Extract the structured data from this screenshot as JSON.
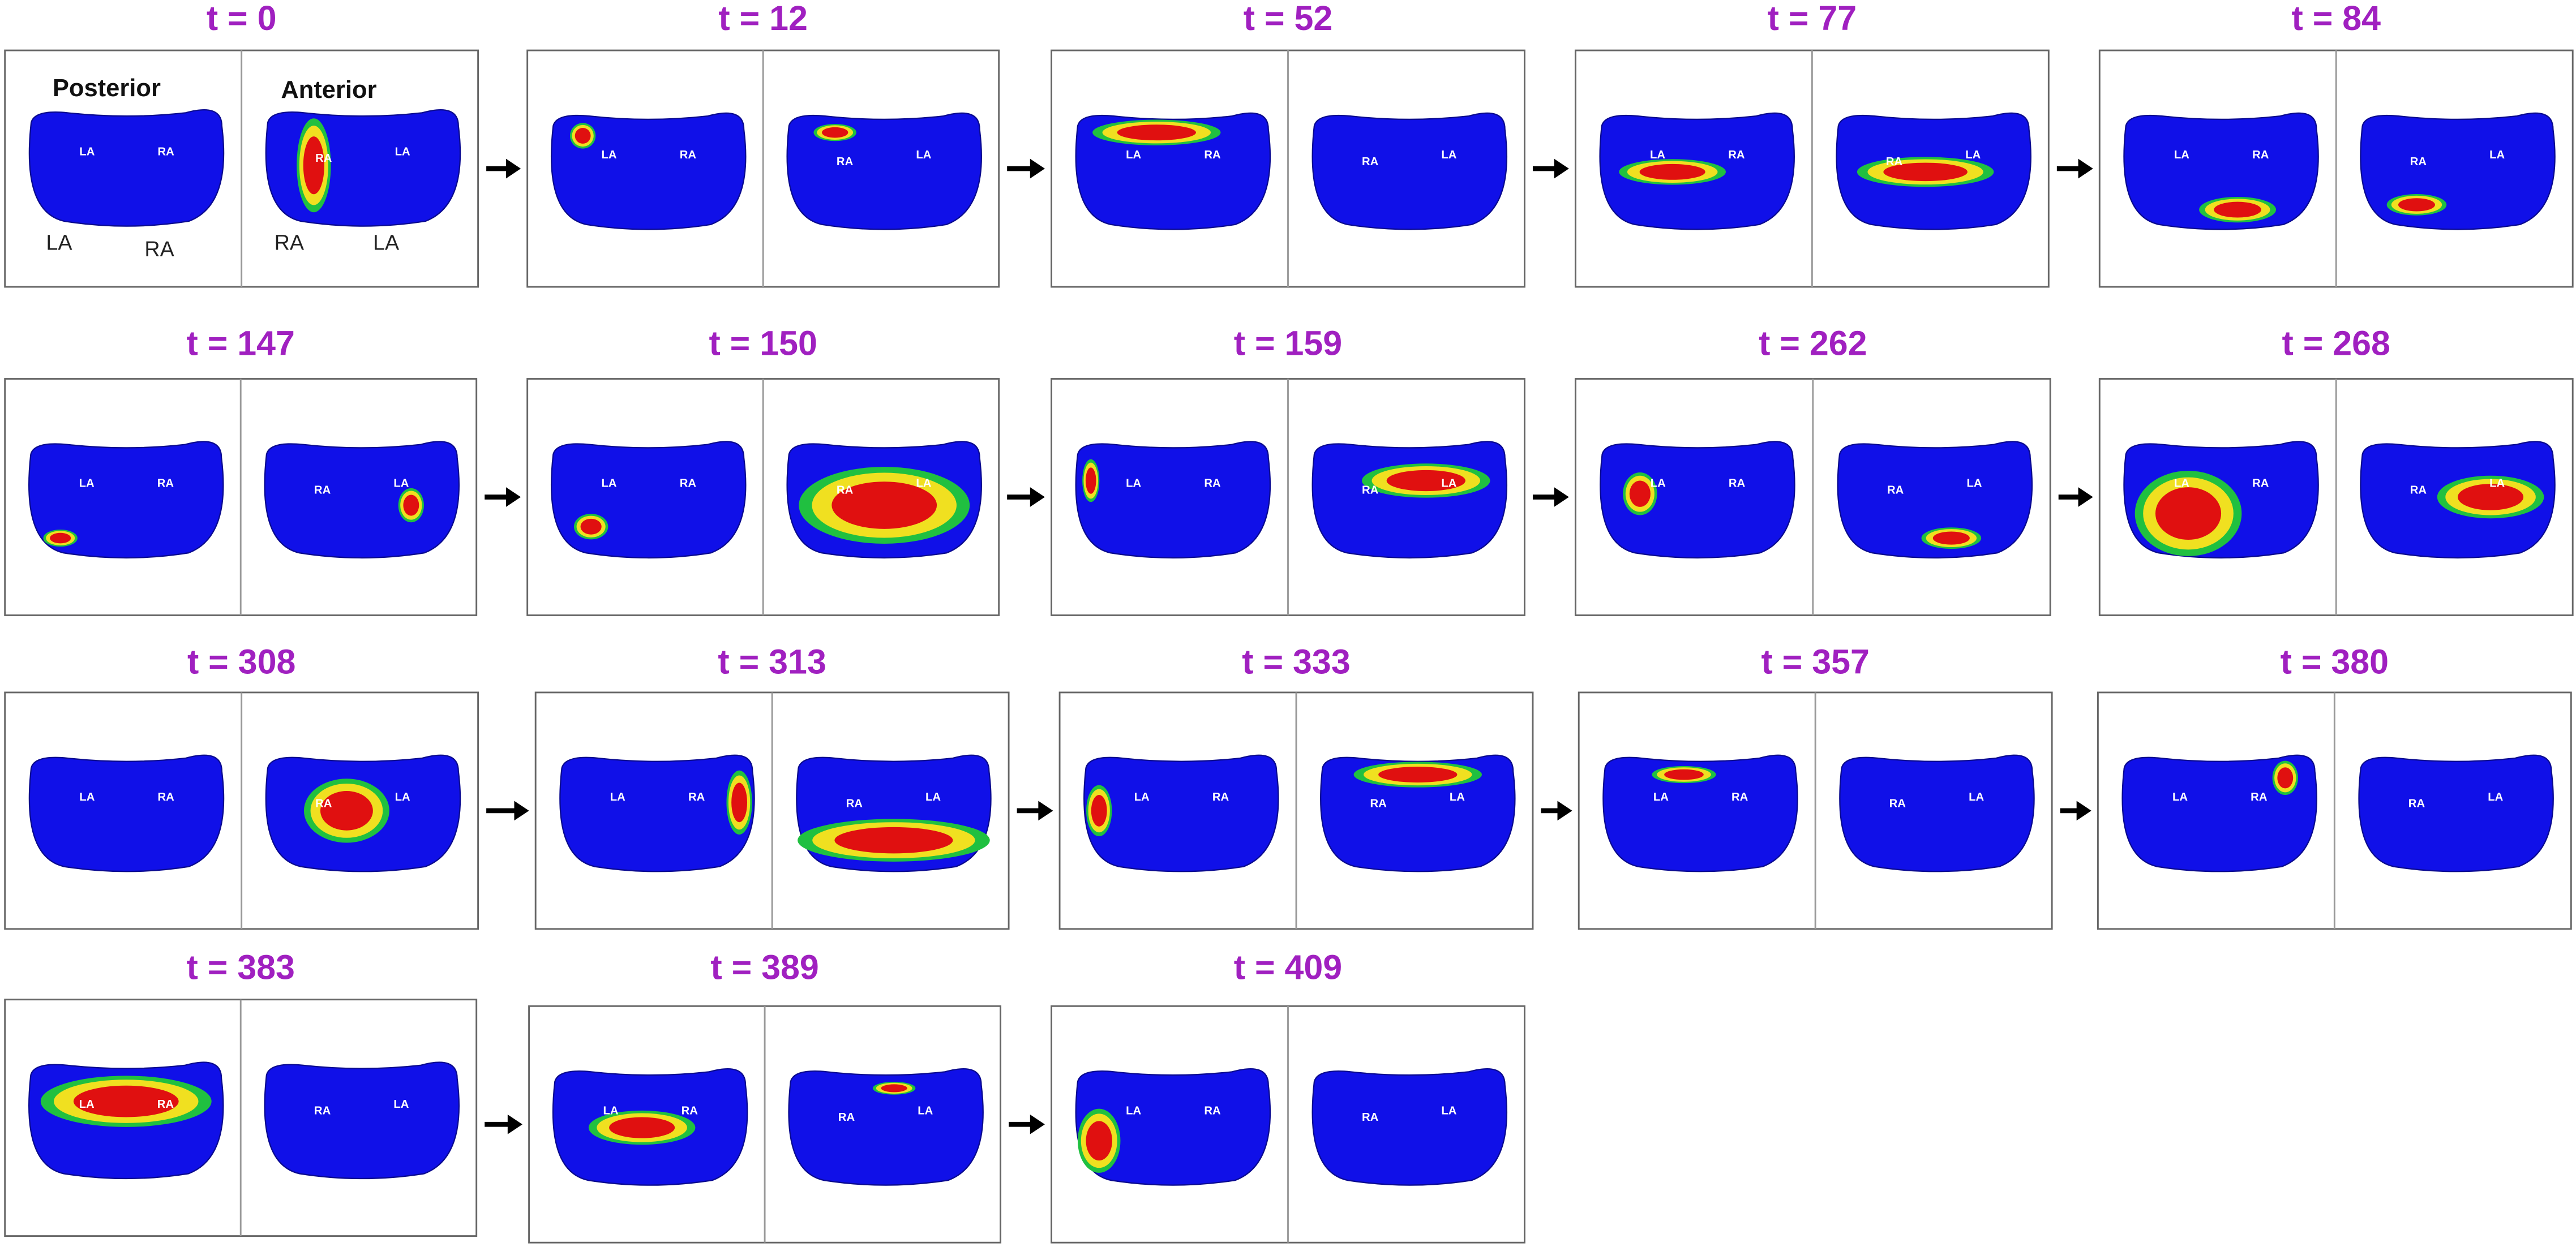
{
  "panels": [
    {
      "title": "t = 0",
      "posterior_labels": [
        "LA",
        "RA"
      ],
      "anterior_labels": [
        "RA",
        "LA"
      ]
    },
    {
      "title": "t = 12",
      "posterior_labels": [
        "LA",
        "RA"
      ],
      "anterior_labels": [
        "RA",
        "LA"
      ]
    },
    {
      "title": "t = 52",
      "posterior_labels": [
        "LA",
        "RA"
      ],
      "anterior_labels": [
        "RA",
        "LA"
      ]
    },
    {
      "title": "t = 77",
      "posterior_labels": [
        "LA",
        "RA"
      ],
      "anterior_labels": [
        "RA",
        "LA"
      ]
    },
    {
      "title": "t = 84",
      "posterior_labels": [
        "LA",
        "RA"
      ],
      "anterior_labels": [
        "RA",
        "LA"
      ]
    },
    {
      "title": "t = 147",
      "posterior_labels": [
        "LA",
        "RA"
      ],
      "anterior_labels": [
        "RA",
        "LA"
      ]
    },
    {
      "title": "t = 150",
      "posterior_labels": [
        "LA",
        "RA"
      ],
      "anterior_labels": [
        "RA",
        "LA"
      ]
    },
    {
      "title": "t = 159",
      "posterior_labels": [
        "LA",
        "RA"
      ],
      "anterior_labels": [
        "RA",
        "LA"
      ]
    },
    {
      "title": "t = 262",
      "posterior_labels": [
        "LA",
        "RA"
      ],
      "anterior_labels": [
        "RA",
        "LA"
      ]
    },
    {
      "title": "t = 268",
      "posterior_labels": [
        "LA",
        "RA"
      ],
      "anterior_labels": [
        "RA",
        "LA"
      ]
    },
    {
      "title": "t = 308",
      "posterior_labels": [
        "LA",
        "RA"
      ],
      "anterior_labels": [
        "RA",
        "LA"
      ]
    },
    {
      "title": "t = 313",
      "posterior_labels": [
        "LA",
        "RA"
      ],
      "anterior_labels": [
        "RA",
        "LA"
      ]
    },
    {
      "title": "t = 333",
      "posterior_labels": [
        "LA",
        "RA"
      ],
      "anterior_labels": [
        "RA",
        "LA"
      ]
    },
    {
      "title": "t = 357",
      "posterior_labels": [
        "LA",
        "RA"
      ],
      "anterior_labels": [
        "RA",
        "LA"
      ]
    },
    {
      "title": "t = 380",
      "posterior_labels": [
        "LA",
        "RA"
      ],
      "anterior_labels": [
        "RA",
        "LA"
      ]
    },
    {
      "title": "t = 383",
      "posterior_labels": [
        "LA",
        "RA"
      ],
      "anterior_labels": [
        "RA",
        "LA"
      ]
    },
    {
      "title": "t = 389",
      "posterior_labels": [
        "LA",
        "RA"
      ],
      "anterior_labels": [
        "RA",
        "LA"
      ]
    },
    {
      "title": "t = 409",
      "posterior_labels": [
        "LA",
        "RA"
      ],
      "anterior_labels": [
        "RA",
        "LA"
      ]
    }
  ],
  "first_panel_views": [
    "Posterior",
    "Anterior"
  ],
  "first_panel_chamber_labels": [
    "LA",
    "RA",
    "RA",
    "LA"
  ]
}
